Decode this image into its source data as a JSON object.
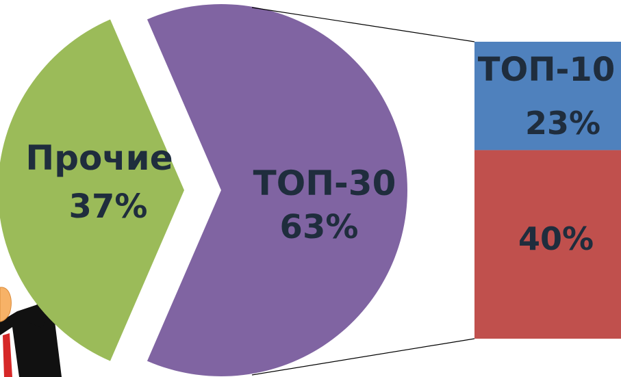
{
  "chart_data": {
    "type": "pie",
    "slices": [
      {
        "label": "Прочие",
        "value": 37,
        "display": "37%",
        "color": "#9BBB59"
      },
      {
        "label": "ТОП-30",
        "value": 63,
        "display": "63%",
        "color": "#8064A2"
      }
    ],
    "breakdown": {
      "of": "ТОП-30",
      "segments": [
        {
          "label": "ТОП-10",
          "value": 23,
          "display": "23%",
          "color": "#4F81BD"
        },
        {
          "label": "",
          "value": 40,
          "display": "40%",
          "color": "#C0504D"
        }
      ]
    },
    "label_color": "#1F2D3D"
  }
}
